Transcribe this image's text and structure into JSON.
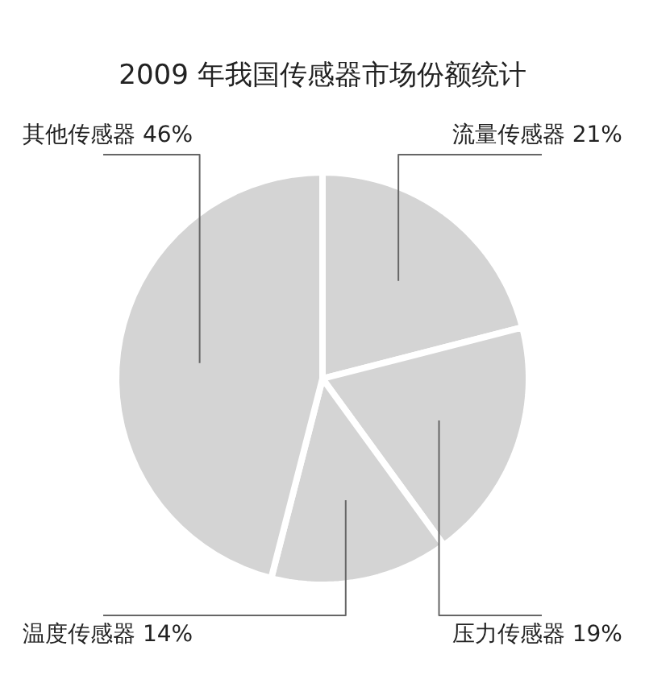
{
  "chart_data": {
    "type": "pie",
    "title": "2009 年我国传感器市场份额统计",
    "categories": [
      "流量传感器",
      "压力传感器",
      "温度传感器",
      "其他传感器"
    ],
    "values": [
      21,
      19,
      14,
      46
    ],
    "value_labels": [
      "21%",
      "19%",
      "14%",
      "46%"
    ],
    "colors": [
      "#d4d4d4",
      "#d4d4d4",
      "#d4d4d4",
      "#d4d4d4"
    ]
  }
}
